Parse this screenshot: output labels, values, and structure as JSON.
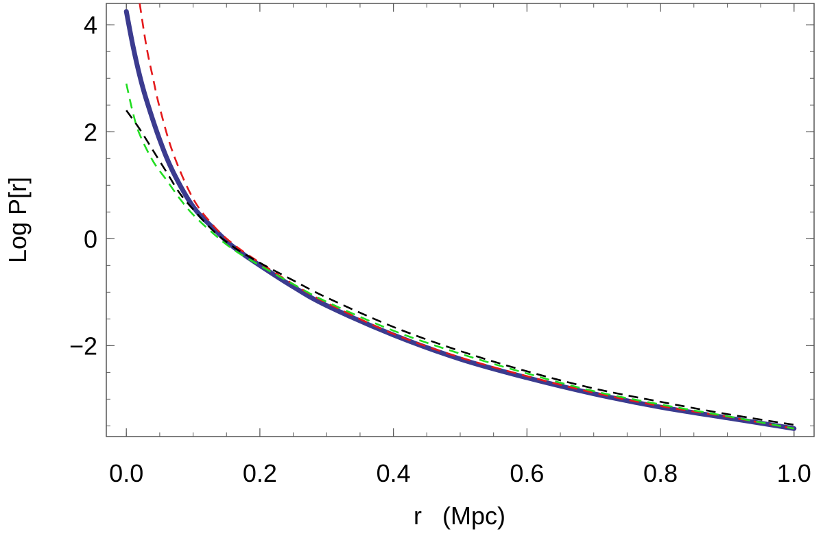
{
  "chart_data": {
    "type": "line",
    "title": "",
    "xlabel": "r   (Mpc)",
    "ylabel": "Log P[r]",
    "xlim": [
      -0.03,
      1.03
    ],
    "ylim": [
      -3.7,
      4.4
    ],
    "x_ticks": [
      0.0,
      0.2,
      0.4,
      0.6,
      0.8,
      1.0
    ],
    "x_tick_labels": [
      "0.0",
      "0.2",
      "0.4",
      "0.6",
      "0.8",
      "1.0"
    ],
    "y_ticks": [
      -2,
      0,
      2,
      4
    ],
    "y_tick_labels": [
      "−2",
      "0",
      "2",
      "4"
    ],
    "grid": false,
    "series": [
      {
        "color": "#3b3b8f",
        "style": "solid",
        "x": [
          0.0,
          0.01,
          0.02,
          0.03,
          0.05,
          0.07,
          0.1,
          0.13,
          0.16,
          0.2,
          0.25,
          0.3,
          0.4,
          0.5,
          0.6,
          0.7,
          0.8,
          0.9,
          1.0
        ],
        "y": [
          4.25,
          3.6,
          3.05,
          2.6,
          1.85,
          1.25,
          0.6,
          0.2,
          -0.15,
          -0.5,
          -0.9,
          -1.25,
          -1.8,
          -2.25,
          -2.6,
          -2.9,
          -3.15,
          -3.35,
          -3.55
        ]
      },
      {
        "color": "#e41a1c",
        "style": "dashed",
        "x": [
          0.02,
          0.03,
          0.04,
          0.05,
          0.07,
          0.1,
          0.13,
          0.16,
          0.2,
          0.25,
          0.3,
          0.4,
          0.5,
          0.6,
          0.7,
          0.8,
          0.9,
          1.0
        ],
        "y": [
          4.4,
          3.6,
          3.0,
          2.45,
          1.6,
          0.75,
          0.25,
          -0.1,
          -0.45,
          -0.85,
          -1.2,
          -1.78,
          -2.22,
          -2.57,
          -2.88,
          -3.13,
          -3.33,
          -3.55
        ]
      },
      {
        "color": "#22dd22",
        "style": "dashed",
        "x": [
          0.0,
          0.01,
          0.02,
          0.04,
          0.06,
          0.08,
          0.1,
          0.13,
          0.16,
          0.2,
          0.25,
          0.3,
          0.4,
          0.5,
          0.6,
          0.7,
          0.8,
          0.9,
          1.0
        ],
        "y": [
          2.9,
          2.35,
          1.95,
          1.45,
          1.1,
          0.75,
          0.45,
          0.1,
          -0.2,
          -0.5,
          -0.85,
          -1.18,
          -1.72,
          -2.15,
          -2.52,
          -2.85,
          -3.1,
          -3.32,
          -3.55
        ]
      },
      {
        "color": "#000000",
        "style": "dashed",
        "x": [
          0.0,
          0.02,
          0.04,
          0.06,
          0.08,
          0.1,
          0.13,
          0.16,
          0.2,
          0.25,
          0.3,
          0.4,
          0.5,
          0.6,
          0.7,
          0.8,
          0.9,
          1.0
        ],
        "y": [
          2.4,
          2.05,
          1.65,
          1.25,
          0.85,
          0.55,
          0.15,
          -0.15,
          -0.45,
          -0.78,
          -1.1,
          -1.65,
          -2.1,
          -2.48,
          -2.8,
          -3.05,
          -3.28,
          -3.48
        ]
      }
    ]
  }
}
